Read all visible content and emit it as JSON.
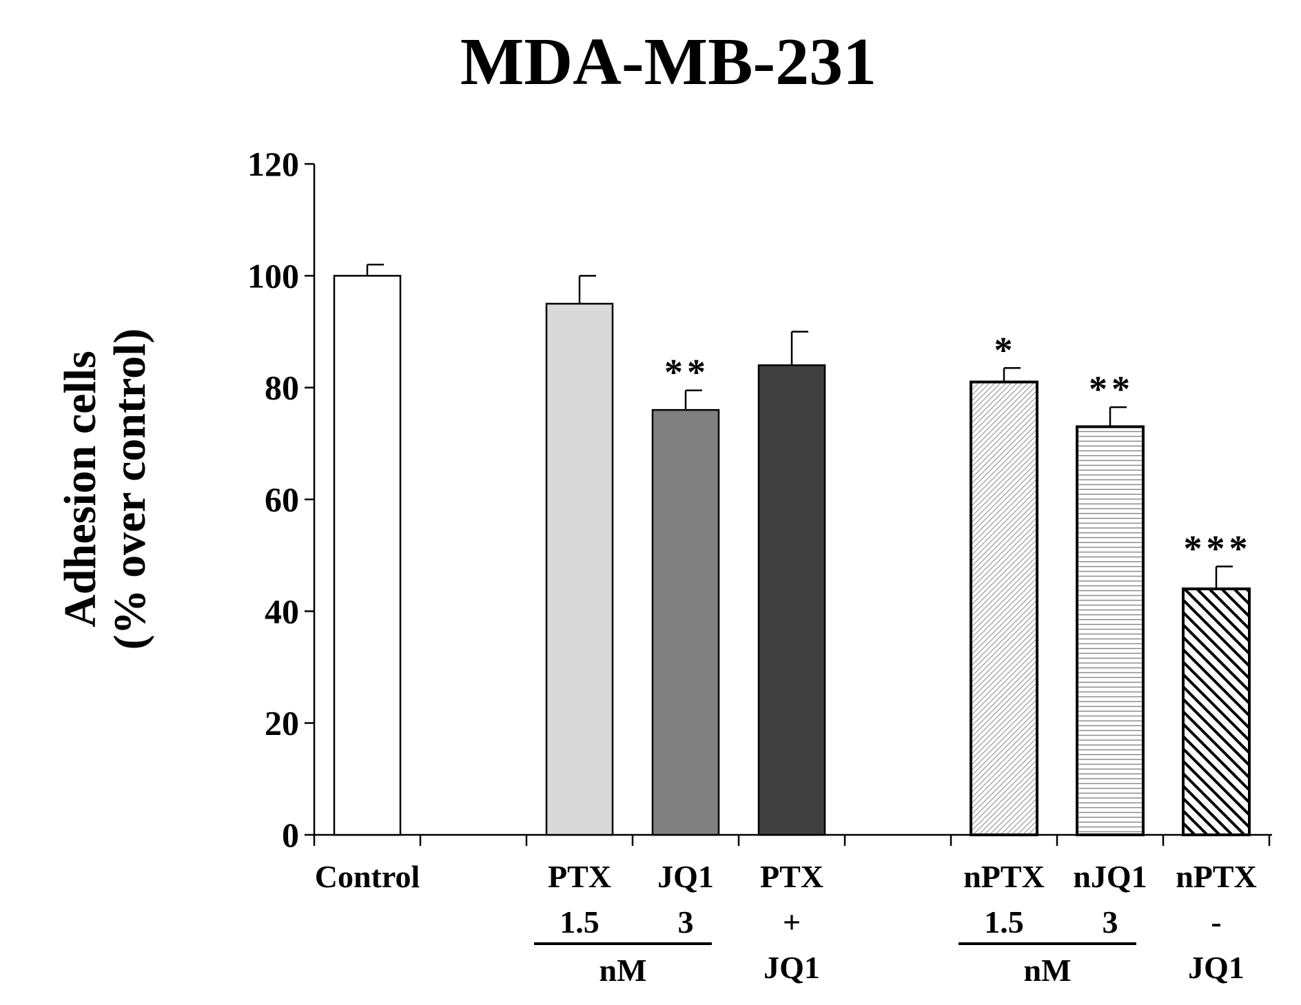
{
  "chart_data": {
    "type": "bar",
    "title": "MDA-MB-231",
    "ylabel_line1": "Adhesion cells",
    "ylabel_line2": "(% over control)",
    "xlabel": "",
    "ylim": [
      0,
      120
    ],
    "yticks": [
      0,
      20,
      40,
      60,
      80,
      100,
      120
    ],
    "grid": false,
    "bars": [
      {
        "id": "control",
        "value": 100,
        "error": 2,
        "significance": "",
        "fill": "white",
        "labels": [
          "Control"
        ]
      },
      {
        "id": "ptx",
        "value": 95,
        "error": 5,
        "significance": "",
        "fill": "light-gray",
        "labels": [
          "PTX",
          "1.5"
        ]
      },
      {
        "id": "jq1",
        "value": 76,
        "error": 3.5,
        "significance": "**",
        "fill": "gray",
        "labels": [
          "JQ1",
          "3"
        ]
      },
      {
        "id": "ptx-jq1",
        "value": 84,
        "error": 6,
        "significance": "",
        "fill": "dark-gray",
        "labels": [
          "PTX",
          "+",
          "JQ1"
        ]
      },
      {
        "id": "nptx",
        "value": 81,
        "error": 2.5,
        "significance": "*",
        "fill": "fine-diagonal-hatch",
        "labels": [
          "nPTX",
          "1.5"
        ]
      },
      {
        "id": "njq1",
        "value": 73,
        "error": 3.5,
        "significance": "**",
        "fill": "horizontal-lines",
        "labels": [
          "nJQ1",
          "3"
        ]
      },
      {
        "id": "nptx-jq1",
        "value": 44,
        "error": 4,
        "significance": "***",
        "fill": "bold-diagonal-hatch",
        "labels": [
          "nPTX",
          "-",
          "JQ1"
        ]
      }
    ],
    "unit_groups": [
      {
        "label": "nM",
        "bars": [
          "ptx",
          "jq1"
        ]
      },
      {
        "label": "nM",
        "bars": [
          "nptx",
          "njq1"
        ]
      }
    ]
  },
  "colors": {
    "axis": "#000000",
    "white": "#ffffff",
    "light-gray": "#d9d9d9",
    "gray": "#808080",
    "dark-gray": "#404040",
    "hatch": "#8a8a8a"
  }
}
